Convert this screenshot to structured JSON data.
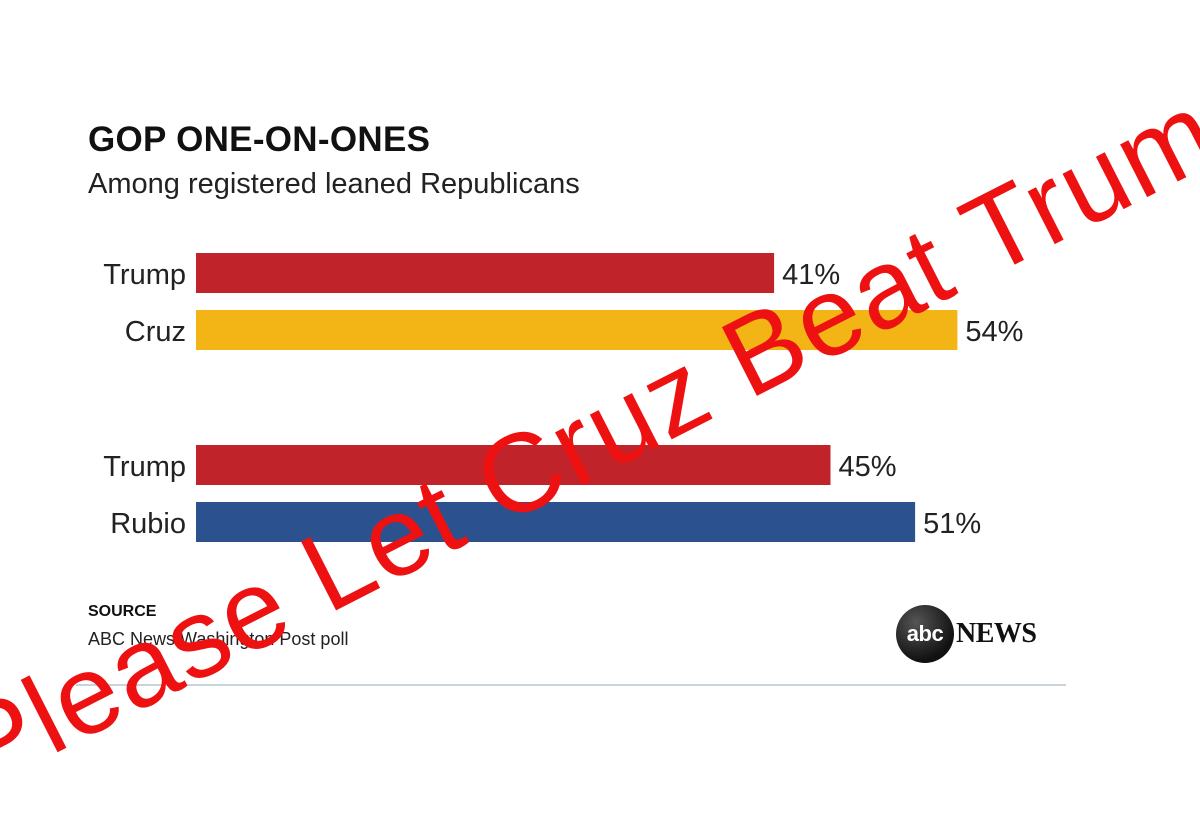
{
  "overlay_text": "Please  Let Cruz Beat Trump",
  "footer": {
    "source_label": "SOURCE",
    "source_text": "ABC News/Washington Post poll",
    "logo_mark": "abc",
    "logo_word": "NEWS"
  },
  "chart_data": {
    "type": "bar",
    "orientation": "horizontal",
    "title": "GOP ONE-ON-ONES",
    "subtitle": "Among registered leaned Republicans",
    "xlim": [
      0,
      100
    ],
    "grid": false,
    "groups": [
      {
        "bars": [
          {
            "label": "Trump",
            "value": 41,
            "display": "41%",
            "color": "#c1232b"
          },
          {
            "label": "Cruz",
            "value": 54,
            "display": "54%",
            "color": "#f3b516"
          }
        ]
      },
      {
        "bars": [
          {
            "label": "Trump",
            "value": 45,
            "display": "45%",
            "color": "#c1232b"
          },
          {
            "label": "Rubio",
            "value": 51,
            "display": "51%",
            "color": "#2b518f"
          }
        ]
      }
    ]
  }
}
